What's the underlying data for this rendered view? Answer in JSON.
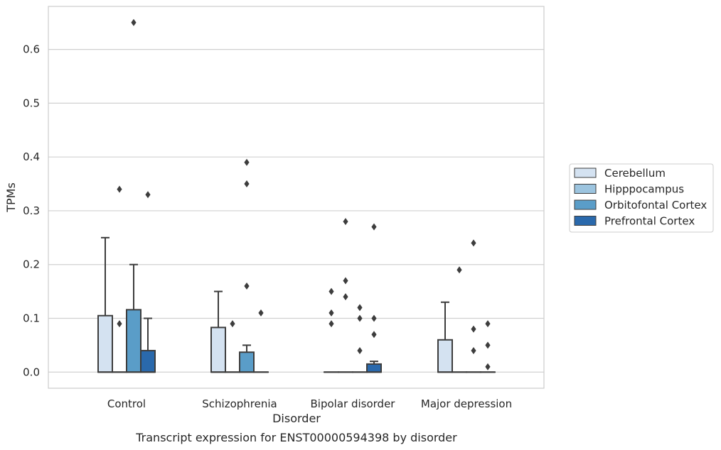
{
  "caption": "Transcript expression for ENST00000594398 by disorder",
  "chart_data": {
    "type": "box",
    "xlabel": "Disorder",
    "ylabel": "TPMs",
    "ylim": [
      -0.03,
      0.68
    ],
    "yticks": [
      0.0,
      0.1,
      0.2,
      0.3,
      0.4,
      0.5,
      0.6
    ],
    "ytick_labels": [
      "0.0",
      "0.1",
      "0.2",
      "0.3",
      "0.4",
      "0.5",
      "0.6"
    ],
    "grid": "horizontal",
    "legend_position": "right",
    "categories": [
      "Control",
      "Schizophrenia",
      "Bipolar disorder",
      "Major depression"
    ],
    "series": [
      {
        "name": "Cerebellum",
        "color": "#d4e2f1",
        "boxes": [
          {
            "q1": 0.0,
            "median": 0.0,
            "q3": 0.105,
            "whisker_low": 0.0,
            "whisker_high": 0.25,
            "outliers": []
          },
          {
            "q1": 0.0,
            "median": 0.0,
            "q3": 0.083,
            "whisker_low": 0.0,
            "whisker_high": 0.15,
            "outliers": []
          },
          {
            "q1": 0.0,
            "median": 0.0,
            "q3": 0.0,
            "whisker_low": 0.0,
            "whisker_high": 0.0,
            "outliers": [
              0.15,
              0.11,
              0.09
            ]
          },
          {
            "q1": 0.0,
            "median": 0.0,
            "q3": 0.06,
            "whisker_low": 0.0,
            "whisker_high": 0.13,
            "outliers": []
          }
        ]
      },
      {
        "name": "Hipppocampus",
        "color": "#9cc4df",
        "boxes": [
          {
            "q1": 0.0,
            "median": 0.0,
            "q3": 0.0,
            "whisker_low": 0.0,
            "whisker_high": 0.0,
            "outliers": [
              0.34,
              0.09
            ]
          },
          {
            "q1": 0.0,
            "median": 0.0,
            "q3": 0.0,
            "whisker_low": 0.0,
            "whisker_high": 0.0,
            "outliers": [
              0.09
            ]
          },
          {
            "q1": 0.0,
            "median": 0.0,
            "q3": 0.0,
            "whisker_low": 0.0,
            "whisker_high": 0.0,
            "outliers": [
              0.28,
              0.17,
              0.14
            ]
          },
          {
            "q1": 0.0,
            "median": 0.0,
            "q3": 0.0,
            "whisker_low": 0.0,
            "whisker_high": 0.0,
            "outliers": [
              0.19
            ]
          }
        ]
      },
      {
        "name": "Orbitofontal Cortex",
        "color": "#5a9dc8",
        "boxes": [
          {
            "q1": 0.0,
            "median": 0.0,
            "q3": 0.116,
            "whisker_low": 0.0,
            "whisker_high": 0.2,
            "outliers": [
              0.65
            ]
          },
          {
            "q1": 0.0,
            "median": 0.0,
            "q3": 0.037,
            "whisker_low": 0.0,
            "whisker_high": 0.05,
            "outliers": [
              0.39,
              0.35,
              0.16
            ]
          },
          {
            "q1": 0.0,
            "median": 0.0,
            "q3": 0.0,
            "whisker_low": 0.0,
            "whisker_high": 0.0,
            "outliers": [
              0.12,
              0.1,
              0.04
            ]
          },
          {
            "q1": 0.0,
            "median": 0.0,
            "q3": 0.0,
            "whisker_low": 0.0,
            "whisker_high": 0.0,
            "outliers": [
              0.24,
              0.08,
              0.04
            ]
          }
        ]
      },
      {
        "name": "Prefrontal Cortex",
        "color": "#2a69ac",
        "boxes": [
          {
            "q1": 0.0,
            "median": 0.0,
            "q3": 0.04,
            "whisker_low": 0.0,
            "whisker_high": 0.1,
            "outliers": [
              0.33
            ]
          },
          {
            "q1": 0.0,
            "median": 0.0,
            "q3": 0.0,
            "whisker_low": 0.0,
            "whisker_high": 0.0,
            "outliers": [
              0.11
            ]
          },
          {
            "q1": 0.0,
            "median": 0.0,
            "q3": 0.015,
            "whisker_low": 0.0,
            "whisker_high": 0.02,
            "outliers": [
              0.27,
              0.1,
              0.07
            ]
          },
          {
            "q1": 0.0,
            "median": 0.0,
            "q3": 0.0,
            "whisker_low": 0.0,
            "whisker_high": 0.0,
            "outliers": [
              0.01,
              0.09,
              0.05
            ]
          }
        ]
      }
    ]
  }
}
